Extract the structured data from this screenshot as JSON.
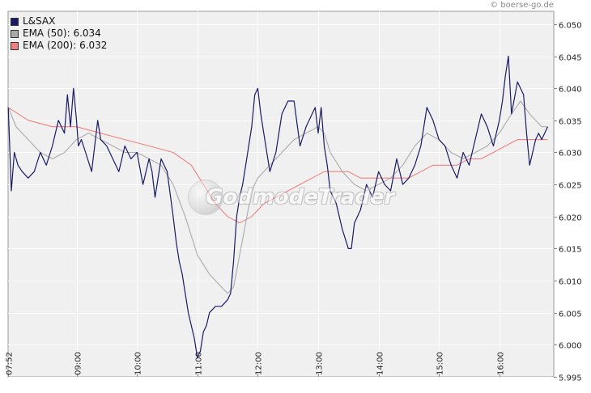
{
  "copyright": "© boerse-go.de",
  "watermark": "GodmodeTrader",
  "legend": [
    {
      "label": "L&SAX",
      "color": "#1a1a66"
    },
    {
      "label": "EMA (50): 6.034",
      "color": "#aaaaaa"
    },
    {
      "label": "EMA (200): 6.032",
      "color": "#f08080"
    }
  ],
  "chart_data": {
    "type": "line",
    "grid": true,
    "legend_position": "top-left",
    "y_axis_position": "right",
    "ylim": [
      5.995,
      6.052
    ],
    "y_ticks": [
      5.995,
      6.0,
      6.005,
      6.01,
      6.015,
      6.02,
      6.025,
      6.03,
      6.035,
      6.04,
      6.045,
      6.05
    ],
    "y_tick_labels": [
      "5.995",
      "6.000",
      "6.005",
      "6.010",
      "6.015",
      "6.020",
      "6.025",
      "6.030",
      "6.035",
      "6.040",
      "6.045",
      "6.050"
    ],
    "xlim": [
      7.867,
      16.9
    ],
    "x_ticks": [
      7.867,
      9,
      10,
      11,
      12,
      13,
      14,
      15,
      16
    ],
    "x_tick_labels": [
      "07:52",
      "09:00",
      "10:00",
      "11:00",
      "12:00",
      "13:00",
      "14:00",
      "15:00",
      "16:00"
    ],
    "series": [
      {
        "name": "L&SAX",
        "color": "#1a1a66",
        "x": [
          7.87,
          7.92,
          7.97,
          8.03,
          8.1,
          8.2,
          8.3,
          8.4,
          8.5,
          8.6,
          8.7,
          8.8,
          8.85,
          8.9,
          8.95,
          9.0,
          9.03,
          9.08,
          9.15,
          9.25,
          9.35,
          9.4,
          9.5,
          9.6,
          9.7,
          9.8,
          9.9,
          10.0,
          10.1,
          10.2,
          10.25,
          10.3,
          10.4,
          10.5,
          10.6,
          10.65,
          10.7,
          10.75,
          10.8,
          10.85,
          10.9,
          10.95,
          11.0,
          11.05,
          11.1,
          11.15,
          11.2,
          11.3,
          11.4,
          11.5,
          11.55,
          11.6,
          11.65,
          11.7,
          11.75,
          11.8,
          11.85,
          11.9,
          11.95,
          12.0,
          12.05,
          12.1,
          12.2,
          12.3,
          12.4,
          12.5,
          12.6,
          12.7,
          12.8,
          12.9,
          12.95,
          13.0,
          13.05,
          13.1,
          13.15,
          13.2,
          13.3,
          13.4,
          13.5,
          13.55,
          13.6,
          13.7,
          13.8,
          13.9,
          14.0,
          14.1,
          14.2,
          14.3,
          14.4,
          14.5,
          14.6,
          14.7,
          14.8,
          14.9,
          15.0,
          15.1,
          15.2,
          15.3,
          15.4,
          15.5,
          15.6,
          15.7,
          15.8,
          15.9,
          16.0,
          16.05,
          16.1,
          16.15,
          16.2,
          16.3,
          16.4,
          16.45,
          16.5,
          16.55,
          16.6,
          16.65,
          16.7,
          16.8
        ],
        "values": [
          6.037,
          6.024,
          6.03,
          6.028,
          6.027,
          6.026,
          6.027,
          6.03,
          6.028,
          6.031,
          6.035,
          6.033,
          6.039,
          6.034,
          6.04,
          6.035,
          6.031,
          6.032,
          6.03,
          6.027,
          6.035,
          6.032,
          6.031,
          6.029,
          6.027,
          6.031,
          6.029,
          6.03,
          6.025,
          6.029,
          6.027,
          6.023,
          6.029,
          6.027,
          6.02,
          6.016,
          6.013,
          6.011,
          6.008,
          6.005,
          6.003,
          6.001,
          5.998,
          5.999,
          6.002,
          6.003,
          6.005,
          6.006,
          6.006,
          6.007,
          6.008,
          6.013,
          6.02,
          6.023,
          6.025,
          6.028,
          6.031,
          6.034,
          6.039,
          6.04,
          6.036,
          6.033,
          6.027,
          6.03,
          6.036,
          6.038,
          6.038,
          6.031,
          6.034,
          6.036,
          6.037,
          6.033,
          6.037,
          6.031,
          6.028,
          6.024,
          6.022,
          6.018,
          6.015,
          6.015,
          6.019,
          6.021,
          6.025,
          6.023,
          6.027,
          6.025,
          6.024,
          6.029,
          6.025,
          6.026,
          6.028,
          6.031,
          6.037,
          6.035,
          6.032,
          6.031,
          6.028,
          6.026,
          6.03,
          6.028,
          6.032,
          6.036,
          6.034,
          6.031,
          6.035,
          6.038,
          6.042,
          6.045,
          6.036,
          6.041,
          6.039,
          6.033,
          6.028,
          6.03,
          6.032,
          6.033,
          6.032,
          6.034
        ]
      },
      {
        "name": "EMA (50): 6.034",
        "color": "#aaaaaa",
        "x": [
          7.87,
          8.0,
          8.2,
          8.4,
          8.6,
          8.8,
          9.0,
          9.2,
          9.4,
          9.6,
          9.8,
          10.0,
          10.2,
          10.4,
          10.6,
          10.8,
          11.0,
          11.2,
          11.4,
          11.5,
          11.6,
          11.7,
          11.8,
          11.9,
          12.0,
          12.2,
          12.4,
          12.6,
          12.8,
          13.0,
          13.1,
          13.2,
          13.4,
          13.6,
          13.8,
          14.0,
          14.2,
          14.4,
          14.6,
          14.8,
          15.0,
          15.2,
          15.4,
          15.6,
          15.8,
          16.0,
          16.2,
          16.35,
          16.5,
          16.6,
          16.7,
          16.8
        ],
        "values": [
          6.037,
          6.034,
          6.032,
          6.03,
          6.029,
          6.03,
          6.032,
          6.033,
          6.032,
          6.031,
          6.03,
          6.03,
          6.029,
          6.028,
          6.025,
          6.02,
          6.014,
          6.011,
          6.009,
          6.008,
          6.009,
          6.014,
          6.019,
          6.024,
          6.026,
          6.028,
          6.03,
          6.032,
          6.033,
          6.034,
          6.033,
          6.03,
          6.027,
          6.025,
          6.024,
          6.025,
          6.026,
          6.028,
          6.031,
          6.033,
          6.032,
          6.03,
          6.029,
          6.03,
          6.031,
          6.033,
          6.036,
          6.038,
          6.036,
          6.035,
          6.034,
          6.034
        ]
      },
      {
        "name": "EMA (200): 6.032",
        "color": "#f08080",
        "x": [
          7.87,
          8.2,
          8.6,
          9.0,
          9.4,
          9.8,
          10.2,
          10.6,
          10.9,
          11.1,
          11.3,
          11.5,
          11.7,
          11.9,
          12.1,
          12.3,
          12.5,
          12.7,
          12.9,
          13.1,
          13.3,
          13.5,
          13.7,
          13.9,
          14.1,
          14.3,
          14.5,
          14.7,
          14.9,
          15.1,
          15.3,
          15.5,
          15.7,
          15.9,
          16.1,
          16.3,
          16.5,
          16.7,
          16.8
        ],
        "values": [
          6.037,
          6.035,
          6.034,
          6.034,
          6.033,
          6.032,
          6.031,
          6.03,
          6.028,
          6.025,
          6.022,
          6.02,
          6.019,
          6.02,
          6.022,
          6.023,
          6.024,
          6.025,
          6.026,
          6.027,
          6.027,
          6.027,
          6.026,
          6.026,
          6.026,
          6.026,
          6.026,
          6.027,
          6.028,
          6.028,
          6.028,
          6.029,
          6.029,
          6.03,
          6.031,
          6.032,
          6.032,
          6.032,
          6.032
        ]
      }
    ]
  }
}
